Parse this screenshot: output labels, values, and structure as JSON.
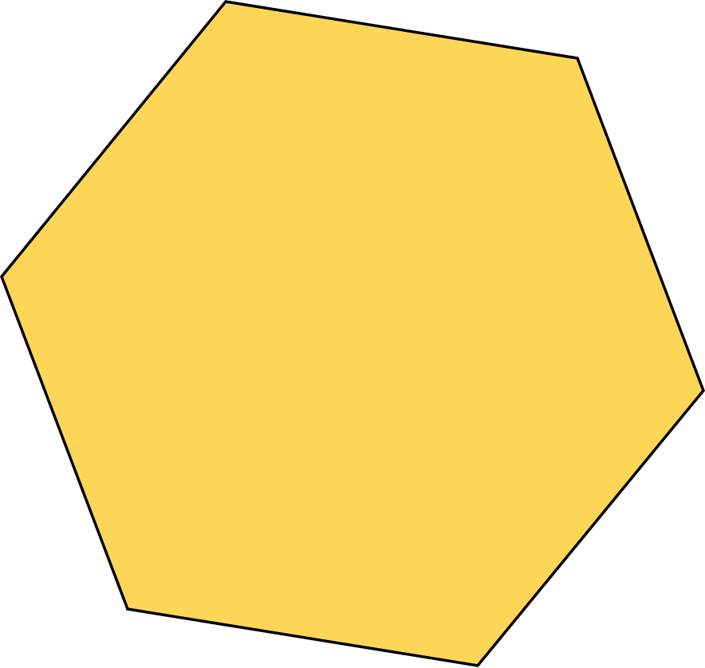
{
  "shape": {
    "kind": "hexagon",
    "fill_color": "#FED657",
    "stroke_color": "#000000"
  }
}
